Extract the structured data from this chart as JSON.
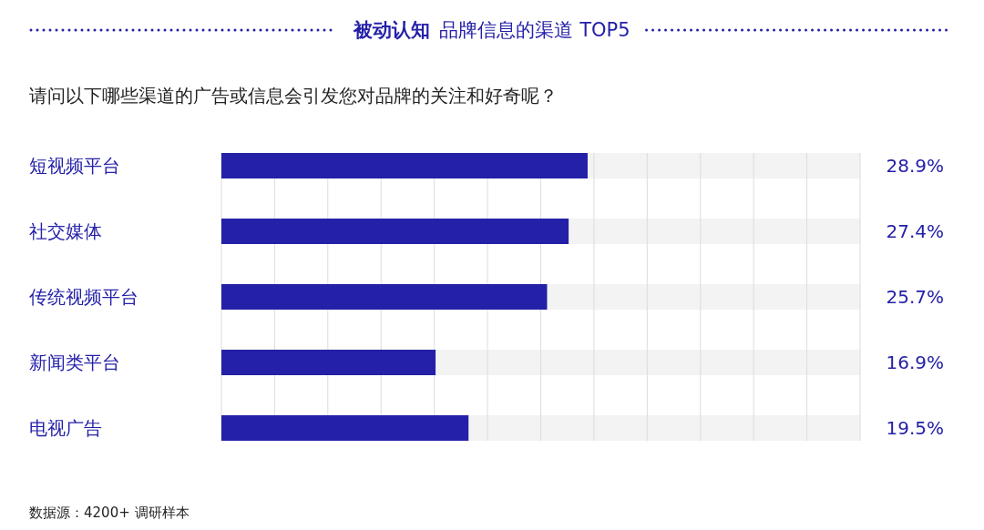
{
  "chart_data": {
    "type": "bar",
    "orientation": "horizontal",
    "title": "被动认知 品牌信息的渠道 TOP5",
    "subtitle": "请问以下哪些渠道的广告或信息会引发您对品牌的关注和好奇呢？",
    "categories": [
      "短视频平台",
      "社交媒体",
      "传统视频平台",
      "新闻类平台",
      "电视广告"
    ],
    "values": [
      28.9,
      27.4,
      25.7,
      16.9,
      19.5
    ],
    "value_labels": [
      "28.9%",
      "27.4%",
      "25.7%",
      "16.9%",
      "19.5%"
    ],
    "color": "#2420a8",
    "xlim": [
      0,
      50.4
    ],
    "xticks": [
      {
        "value": 0,
        "label": null
      },
      {
        "value": 4.2,
        "label": null
      },
      {
        "value": 8.4,
        "label": null
      },
      {
        "value": 12.6,
        "label": null
      },
      {
        "value": 16.8,
        "label": null
      },
      {
        "value": 21,
        "label": null
      },
      {
        "value": 25.2,
        "label": null
      },
      {
        "value": 29.4,
        "label": null
      },
      {
        "value": 33.6,
        "label": null
      },
      {
        "value": 37.8,
        "label": null
      },
      {
        "value": 42,
        "label": null
      },
      {
        "value": 46.2,
        "label": null
      },
      {
        "value": 50.4,
        "label": null
      }
    ],
    "grid": "x",
    "annotations": [
      "数据源：4200+ 调研样本"
    ]
  }
}
